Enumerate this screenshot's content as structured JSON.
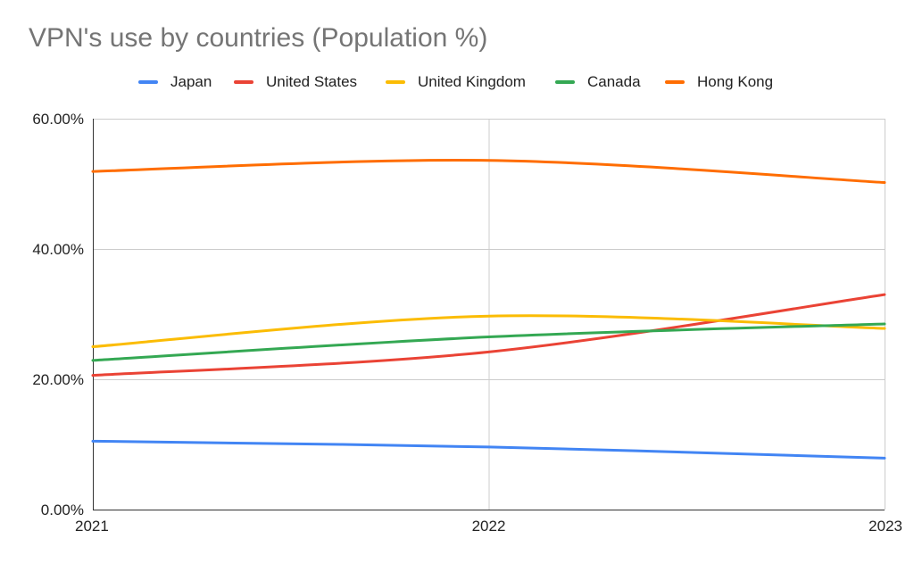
{
  "chart_data": {
    "type": "line",
    "title": "VPN's use by countries (Population %)",
    "xlabel": "",
    "ylabel": "",
    "categories": [
      "2021",
      "2022",
      "2023"
    ],
    "x_tick_labels": [
      "2021",
      "2022",
      "2023"
    ],
    "y_tick_labels": [
      "0.00%",
      "20.00%",
      "40.00%",
      "60.00%"
    ],
    "y_ticks": [
      0,
      20,
      40,
      60
    ],
    "ylim": [
      0,
      60
    ],
    "grid": true,
    "smooth": true,
    "legend_position": "top",
    "series": [
      {
        "name": "Japan",
        "color": "#4285f4",
        "values": [
          10.5,
          9.6,
          7.9
        ]
      },
      {
        "name": "United States",
        "color": "#ea4335",
        "values": [
          20.6,
          24.2,
          33.0
        ]
      },
      {
        "name": "United Kingdom",
        "color": "#fbbc04",
        "values": [
          25.0,
          29.7,
          27.8
        ]
      },
      {
        "name": "Canada",
        "color": "#34a853",
        "values": [
          22.9,
          26.5,
          28.5
        ]
      },
      {
        "name": "Hong Kong",
        "color": "#ff6d01",
        "values": [
          51.9,
          53.6,
          50.2
        ]
      }
    ]
  }
}
